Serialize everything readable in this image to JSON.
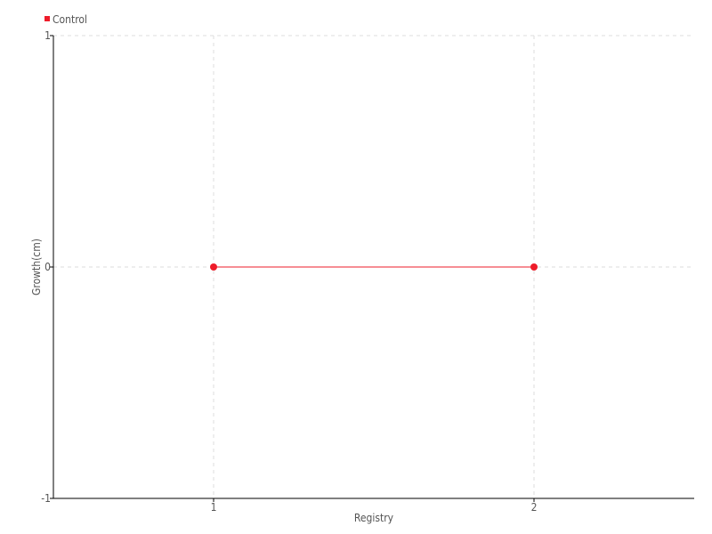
{
  "chart_data": {
    "type": "line",
    "title": "",
    "xlabel": "Registry",
    "ylabel": "Growth(cm)",
    "xlim": [
      0.5,
      2.5
    ],
    "ylim": [
      -1,
      1
    ],
    "xticks": [
      1,
      2
    ],
    "yticks": [
      -1,
      0,
      1
    ],
    "grid": true,
    "legend": "top-left",
    "series": [
      {
        "name": "Control",
        "color": "#ee1c2a",
        "x": [
          1,
          2
        ],
        "y": [
          0,
          0
        ]
      }
    ]
  }
}
